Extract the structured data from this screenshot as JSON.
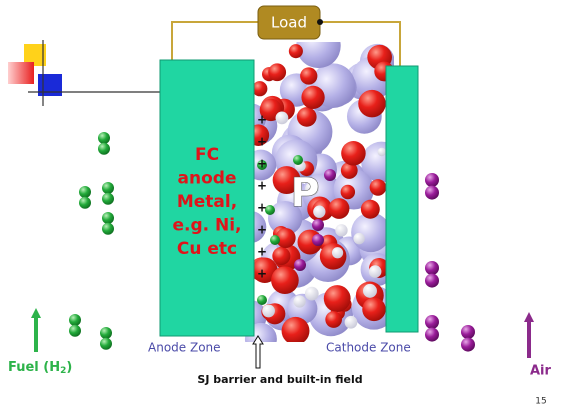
{
  "load": "Load",
  "anode_label": [
    "FC",
    "anode",
    "Metal,",
    "e.g. Ni,",
    "Cu etc"
  ],
  "p_label": "P",
  "zones": [
    "Anode Zone",
    "Cathode Zone"
  ],
  "caption": "SJ barrier and built-in field",
  "fuel": {
    "text": "Fuel  (H",
    "sub": "2",
    "close": ")"
  },
  "air": "Air",
  "page_number": "15"
}
